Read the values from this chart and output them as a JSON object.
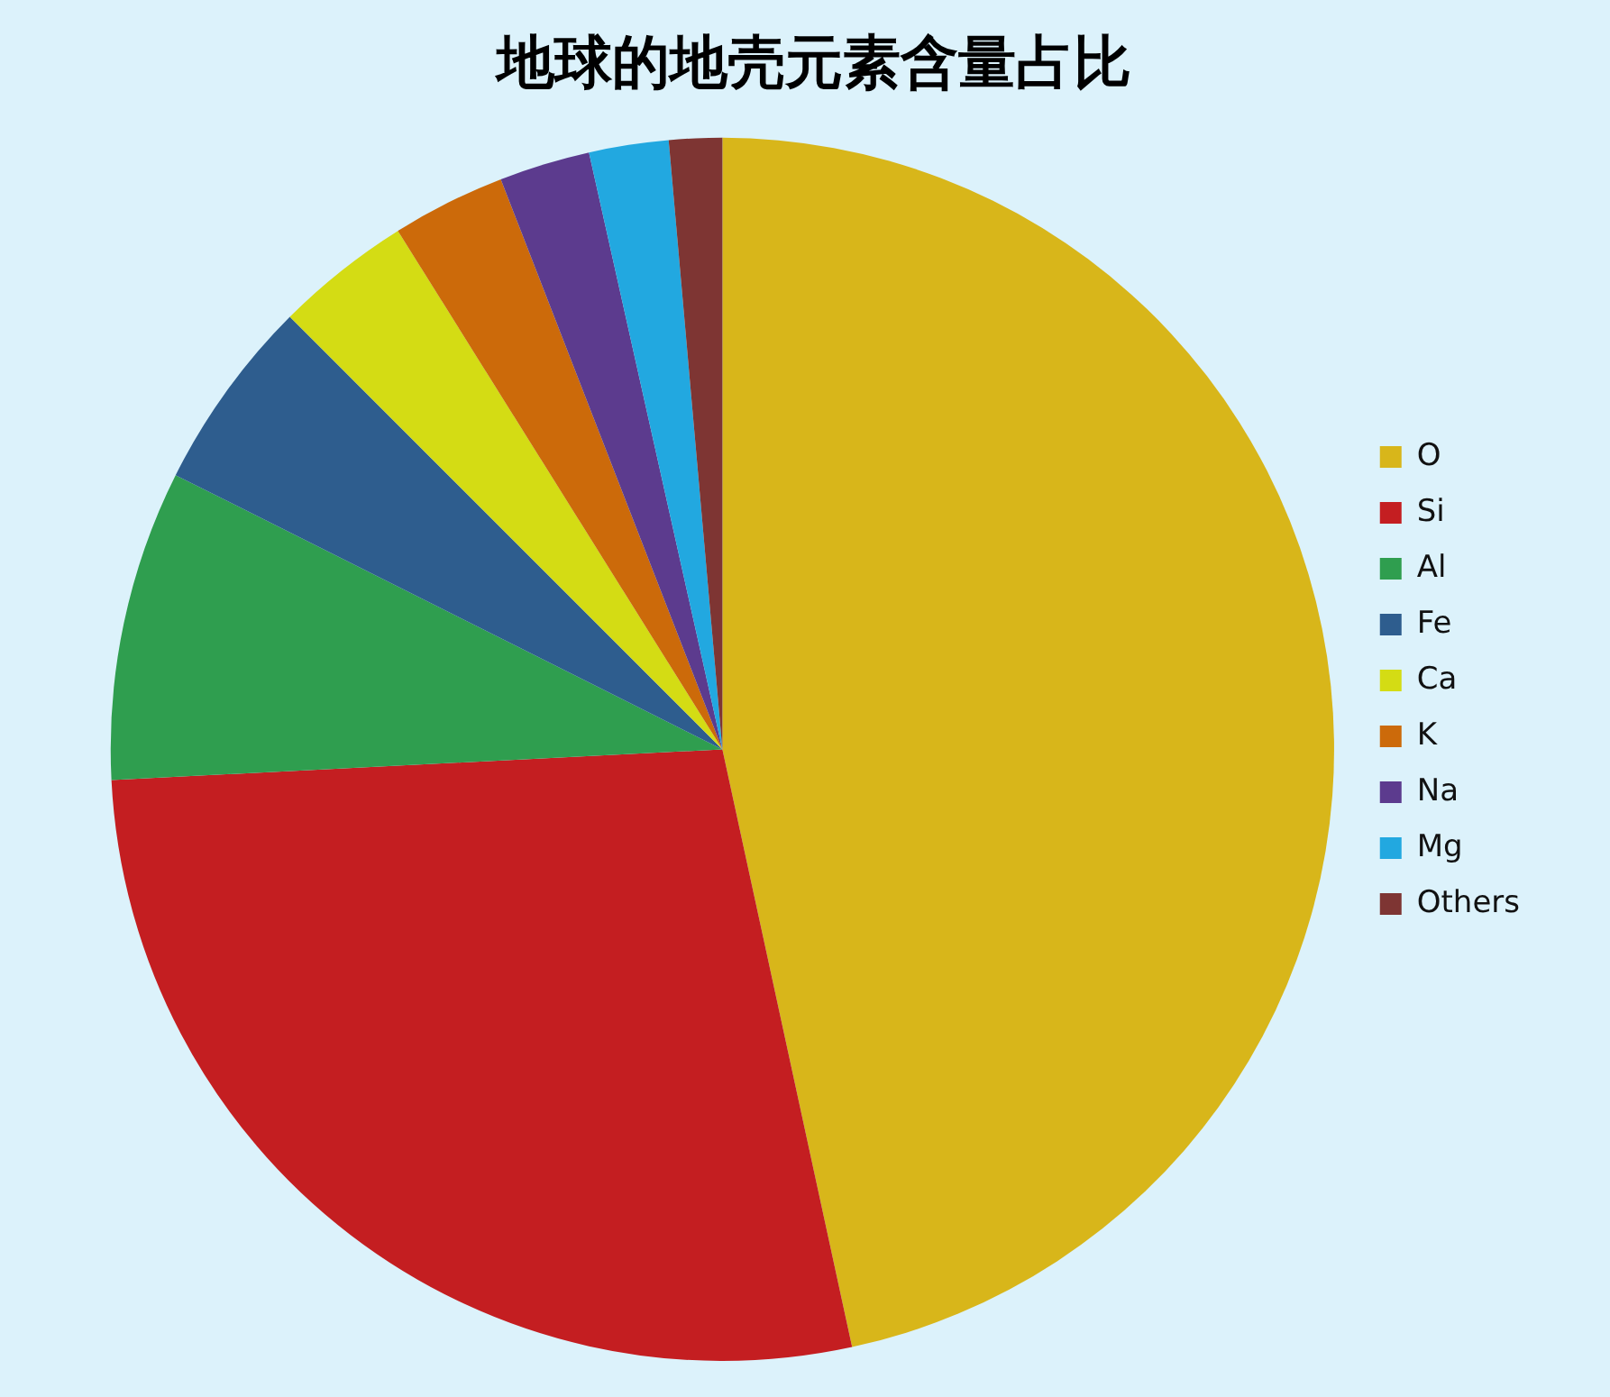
{
  "chart_data": {
    "type": "pie",
    "title": "地球的地壳元素含量占比",
    "categories": [
      "O",
      "Si",
      "Al",
      "Fe",
      "Ca",
      "K",
      "Na",
      "Mg",
      "Others"
    ],
    "values": [
      46.6,
      27.6,
      8.2,
      5.1,
      3.6,
      3.0,
      2.4,
      2.1,
      1.4
    ],
    "colors": [
      "#d8b61a",
      "#c41e21",
      "#2f9e4f",
      "#2e5d8e",
      "#d4dc14",
      "#cc6a0a",
      "#5c3b8e",
      "#22a8e0",
      "#7e3533"
    ],
    "legend": "right"
  }
}
